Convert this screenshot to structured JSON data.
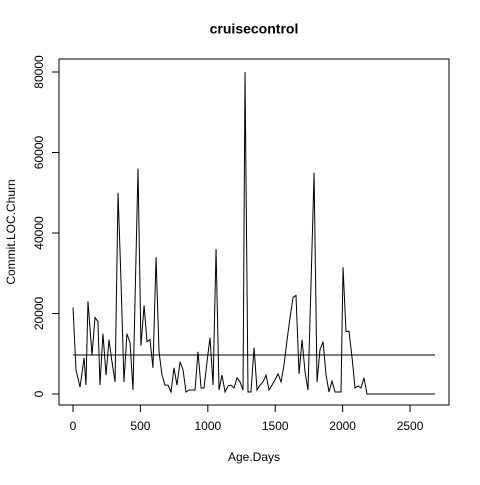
{
  "chart_data": {
    "type": "line",
    "title": "cruisecontrol",
    "x_label": "Age.Days",
    "y_label": "Commit.LOC.Churn",
    "x": [
      0,
      22,
      52,
      82,
      96,
      111,
      141,
      163,
      185,
      200,
      222,
      245,
      267,
      289,
      312,
      334,
      356,
      378,
      400,
      423,
      445,
      482,
      504,
      527,
      549,
      571,
      593,
      616,
      638,
      660,
      682,
      705,
      727,
      749,
      771,
      794,
      816,
      838,
      861,
      883,
      905,
      927,
      950,
      972,
      994,
      1016,
      1039,
      1061,
      1083,
      1105,
      1128,
      1150,
      1172,
      1194,
      1217,
      1239,
      1261,
      1276,
      1298,
      1320,
      1343,
      1365,
      1387,
      1409,
      1432,
      1454,
      1476,
      1498,
      1521,
      1543,
      1565,
      1588,
      1610,
      1632,
      1654,
      1677,
      1699,
      1721,
      1743,
      1766,
      1788,
      1810,
      1832,
      1855,
      1877,
      1899,
      1921,
      1944,
      1966,
      1988,
      2003,
      2025,
      2047,
      2070,
      2092,
      2114,
      2136,
      2158,
      2181,
      2685
    ],
    "values": [
      21500,
      6000,
      1700,
      9000,
      2200,
      23000,
      9700,
      19000,
      18000,
      2200,
      15000,
      4700,
      13500,
      8000,
      3000,
      50000,
      28000,
      3000,
      15000,
      12700,
      1000,
      56000,
      12000,
      22000,
      13000,
      13500,
      6500,
      34000,
      10500,
      4700,
      2200,
      2200,
      500,
      6500,
      2200,
      8000,
      6000,
      500,
      1000,
      1000,
      1000,
      10500,
      1500,
      1500,
      8000,
      14000,
      2200,
      36000,
      1000,
      4700,
      500,
      2000,
      2200,
      1500,
      4000,
      3000,
      1000,
      80000,
      500,
      500,
      11500,
      1000,
      2200,
      3000,
      4700,
      1000,
      2200,
      3500,
      5000,
      3000,
      7200,
      13500,
      19000,
      24000,
      24500,
      5000,
      13500,
      5500,
      1000,
      28000,
      55000,
      3000,
      11000,
      13000,
      4700,
      500,
      3200,
      500,
      500,
      500,
      31500,
      15500,
      15600,
      9000,
      1500,
      2000,
      1500,
      4000,
      0,
      0
    ],
    "color": "#000000",
    "hline": 9700,
    "xlim": [
      -104,
      2789
    ],
    "ylim": [
      -2733,
      83230
    ],
    "xticks": [
      0,
      500,
      1000,
      1500,
      2000,
      2500
    ],
    "yticks": [
      0,
      20000,
      40000,
      60000,
      80000
    ]
  }
}
